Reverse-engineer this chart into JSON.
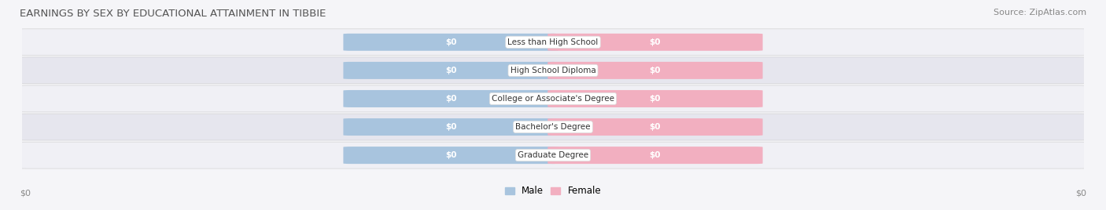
{
  "title": "EARNINGS BY SEX BY EDUCATIONAL ATTAINMENT IN TIBBIE",
  "source": "Source: ZipAtlas.com",
  "categories": [
    "Less than High School",
    "High School Diploma",
    "College or Associate's Degree",
    "Bachelor's Degree",
    "Graduate Degree"
  ],
  "male_values": [
    0,
    0,
    0,
    0,
    0
  ],
  "female_values": [
    0,
    0,
    0,
    0,
    0
  ],
  "male_color": "#a8c4de",
  "female_color": "#f2afc0",
  "title_fontsize": 9.5,
  "source_fontsize": 8,
  "label_fontsize": 8,
  "value_label": "$0",
  "legend_male": "Male",
  "legend_female": "Female",
  "xlabel_left": "$0",
  "xlabel_right": "$0",
  "row_light": "#f0f0f5",
  "row_dark": "#e6e6ee",
  "bg_color": "#f5f5f8"
}
